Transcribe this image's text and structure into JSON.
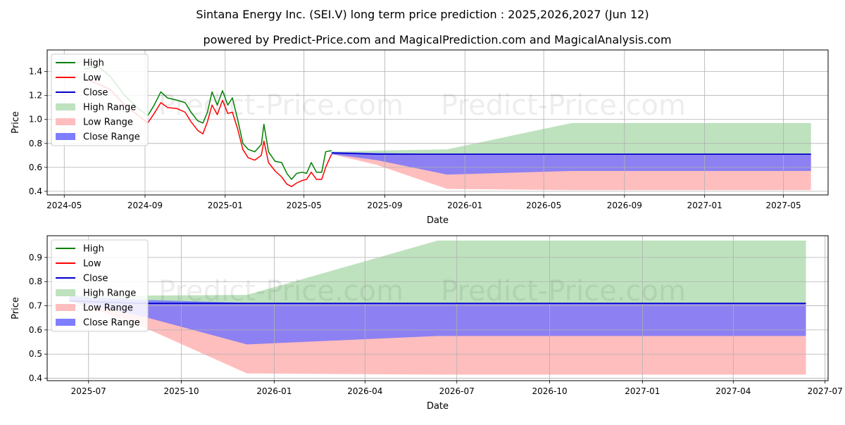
{
  "header": {
    "title": "Sintana Energy Inc. (SEI.V) long term price prediction : 2025,2026,2027 (Jun 12)",
    "subtitle": "powered by Predict-Price.com and MagicalPrediction.com and MagicalAnalysis.com"
  },
  "watermark": "Predict-Price.com",
  "colors": {
    "high": "#008000",
    "low": "#ff0000",
    "close": "#0000cc",
    "high_range": "#a8d8a8",
    "low_range": "#ffb3b3",
    "close_range": "#7070ff"
  },
  "chart_data": [
    {
      "type": "line",
      "name": "top-panel",
      "xlabel": "Date",
      "ylabel": "Price",
      "xlim": [
        "2024-04-05",
        "2027-07-08"
      ],
      "ylim": [
        0.37,
        1.58
      ],
      "xticks": [
        "2024-05",
        "2024-09",
        "2025-01",
        "2025-05",
        "2025-09",
        "2026-01",
        "2026-05",
        "2026-09",
        "2027-01",
        "2027-05"
      ],
      "xtick_dates": [
        "2024-05-01",
        "2024-09-01",
        "2025-01-01",
        "2025-05-01",
        "2025-09-01",
        "2026-01-01",
        "2026-05-01",
        "2026-09-01",
        "2027-01-01",
        "2027-05-01"
      ],
      "yticks": [
        0.4,
        0.6,
        0.8,
        1.0,
        1.2,
        1.4
      ],
      "ytick_labels": [
        "0.4",
        "0.6",
        "0.8",
        "1.0",
        "1.2",
        "1.4"
      ],
      "legend": [
        "High",
        "Low",
        "Close",
        "High Range",
        "Low Range",
        "Close Range"
      ],
      "legend_position": "top-left",
      "grid": true,
      "history": {
        "dates": [
          "2024-06-01",
          "2024-06-20",
          "2024-07-10",
          "2024-08-01",
          "2024-08-20",
          "2024-09-05",
          "2024-09-15",
          "2024-09-25",
          "2024-10-05",
          "2024-10-20",
          "2024-11-01",
          "2024-11-10",
          "2024-11-20",
          "2024-11-28",
          "2024-12-05",
          "2024-12-12",
          "2024-12-20",
          "2024-12-28",
          "2025-01-05",
          "2025-01-12",
          "2025-01-20",
          "2025-01-28",
          "2025-02-05",
          "2025-02-15",
          "2025-02-25",
          "2025-03-01",
          "2025-03-08",
          "2025-03-18",
          "2025-03-28",
          "2025-04-05",
          "2025-04-12",
          "2025-04-20",
          "2025-04-28",
          "2025-05-05",
          "2025-05-12",
          "2025-05-20",
          "2025-05-28",
          "2025-06-03",
          "2025-06-12"
        ],
        "high": [
          1.42,
          1.45,
          1.36,
          1.2,
          1.1,
          1.03,
          1.12,
          1.23,
          1.18,
          1.16,
          1.14,
          1.06,
          0.99,
          0.97,
          1.06,
          1.23,
          1.12,
          1.24,
          1.12,
          1.18,
          1.0,
          0.8,
          0.75,
          0.73,
          0.79,
          0.96,
          0.73,
          0.65,
          0.64,
          0.55,
          0.5,
          0.55,
          0.56,
          0.55,
          0.64,
          0.56,
          0.56,
          0.73,
          0.74
        ],
        "low": [
          1.34,
          1.3,
          1.25,
          1.12,
          1.04,
          0.97,
          1.05,
          1.14,
          1.1,
          1.09,
          1.06,
          0.98,
          0.91,
          0.88,
          0.98,
          1.12,
          1.04,
          1.16,
          1.05,
          1.06,
          0.92,
          0.75,
          0.68,
          0.66,
          0.7,
          0.82,
          0.64,
          0.57,
          0.52,
          0.46,
          0.44,
          0.47,
          0.49,
          0.5,
          0.56,
          0.5,
          0.5,
          0.6,
          0.71
        ]
      },
      "forecast": {
        "dates": [
          "2025-06-12",
          "2025-08-20",
          "2025-12-05",
          "2026-06-12",
          "2027-06-12"
        ],
        "close": [
          0.72,
          0.71,
          0.71,
          0.71,
          0.71
        ],
        "high_range": [
          0.73,
          0.74,
          0.75,
          0.97,
          0.97
        ],
        "close_range_top": [
          0.73,
          0.72,
          0.71,
          0.71,
          0.71
        ],
        "close_range_bottom": [
          0.71,
          0.66,
          0.54,
          0.57,
          0.57
        ],
        "low_range": [
          0.71,
          0.62,
          0.42,
          0.41,
          0.41
        ]
      }
    },
    {
      "type": "line",
      "name": "bottom-panel",
      "xlabel": "Date",
      "ylabel": "Price",
      "xlim": [
        "2025-05-21",
        "2027-07-04"
      ],
      "ylim": [
        0.39,
        0.99
      ],
      "xticks": [
        "2025-07",
        "2025-10",
        "2026-01",
        "2026-04",
        "2026-07",
        "2026-10",
        "2027-01",
        "2027-04",
        "2027-07"
      ],
      "xtick_dates": [
        "2025-07-01",
        "2025-10-01",
        "2026-01-01",
        "2026-04-01",
        "2026-07-01",
        "2026-10-01",
        "2027-01-01",
        "2027-04-01",
        "2027-07-01"
      ],
      "yticks": [
        0.4,
        0.5,
        0.6,
        0.7,
        0.8,
        0.9
      ],
      "ytick_labels": [
        "0.4",
        "0.5",
        "0.6",
        "0.7",
        "0.8",
        "0.9"
      ],
      "legend": [
        "High",
        "Low",
        "Close",
        "High Range",
        "Low Range",
        "Close Range"
      ],
      "legend_position": "top-left",
      "grid": true,
      "forecast": {
        "dates": [
          "2025-06-12",
          "2025-08-20",
          "2025-12-05",
          "2026-06-12",
          "2027-06-12"
        ],
        "close": [
          0.72,
          0.71,
          0.71,
          0.71,
          0.71
        ],
        "high_range": [
          0.745,
          0.742,
          0.745,
          0.97,
          0.97
        ],
        "close_range_top": [
          0.74,
          0.725,
          0.712,
          0.712,
          0.712
        ],
        "close_range_bottom": [
          0.72,
          0.66,
          0.54,
          0.575,
          0.575
        ],
        "low_range": [
          0.72,
          0.62,
          0.42,
          0.415,
          0.415
        ]
      }
    }
  ]
}
